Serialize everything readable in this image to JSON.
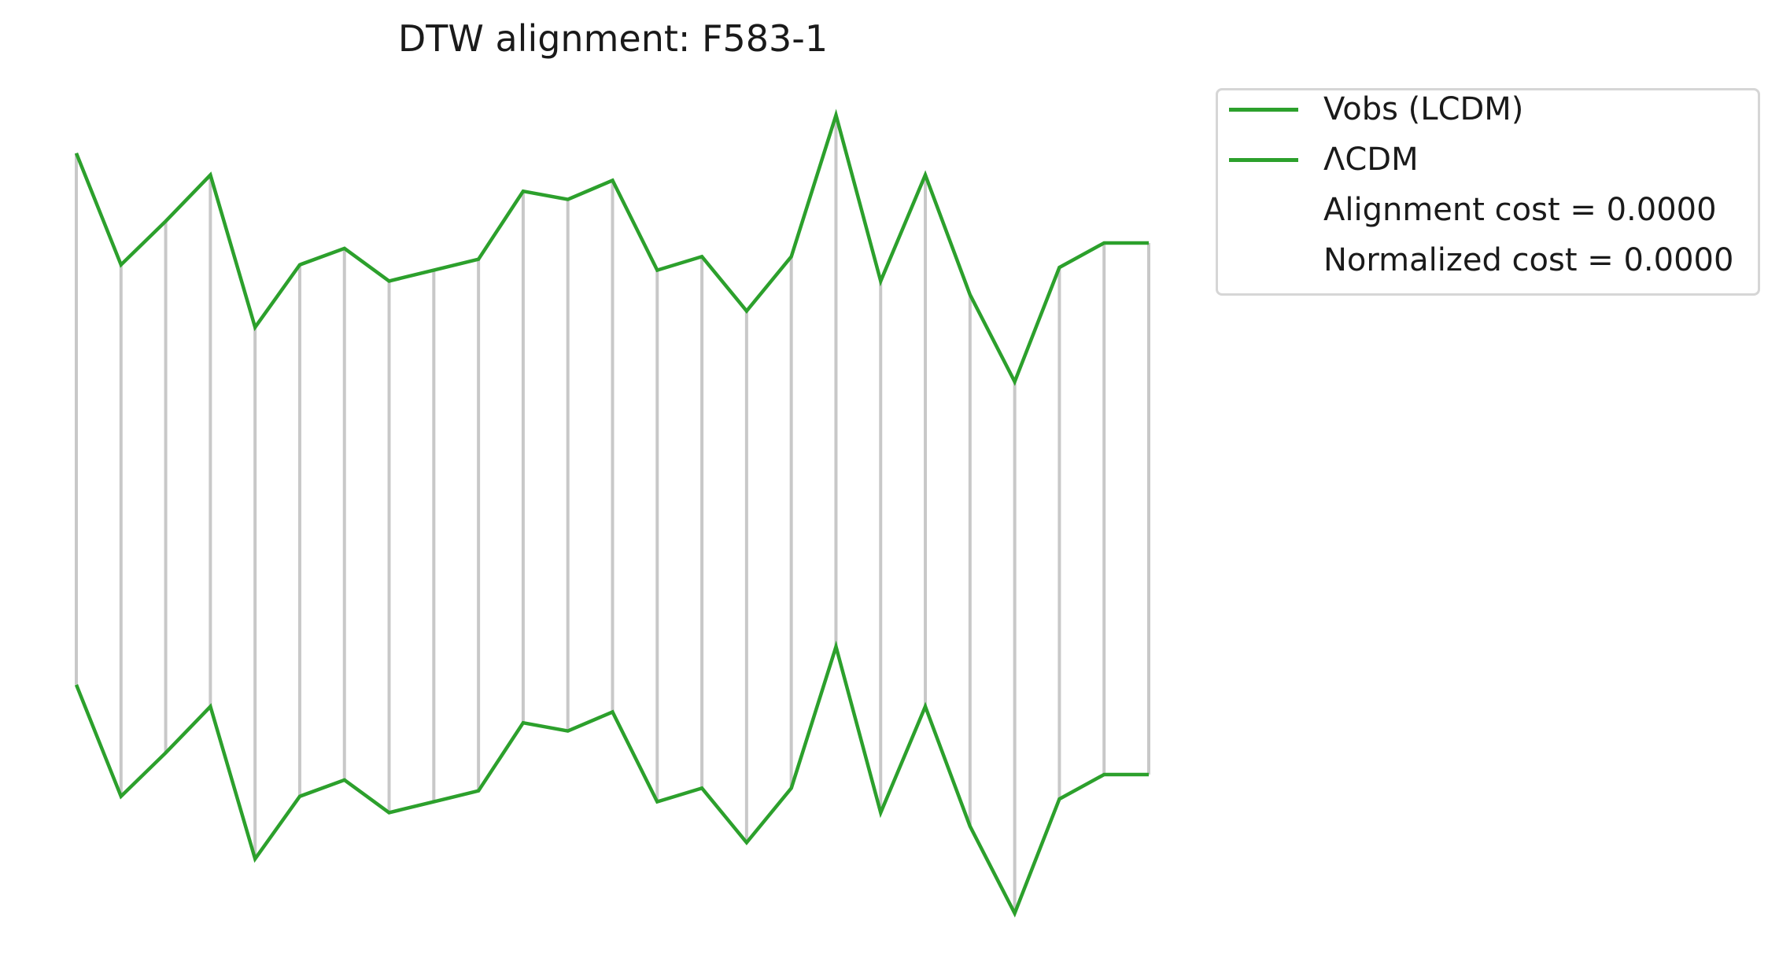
{
  "chart_data": {
    "type": "line",
    "title": "DTW alignment: F583-1",
    "xlabel": "",
    "ylabel": "",
    "axes_visible": false,
    "grid": false,
    "legend_position": "outside-right-top",
    "series": [
      {
        "name": "Vobs (LCDM)",
        "color": "#2ca02c",
        "values": [
          1.2,
          0.79,
          0.95,
          1.12,
          0.56,
          0.79,
          0.85,
          0.73,
          0.77,
          0.81,
          1.06,
          1.03,
          1.1,
          0.77,
          0.82,
          0.62,
          0.82,
          1.34,
          0.73,
          1.12,
          0.68,
          0.36,
          0.78,
          0.87,
          0.87
        ]
      },
      {
        "name": "ΛCDM",
        "color": "#2ca02c",
        "values": [
          1.2,
          0.79,
          0.95,
          1.12,
          0.56,
          0.79,
          0.85,
          0.73,
          0.77,
          0.81,
          1.06,
          1.03,
          1.1,
          0.77,
          0.82,
          0.62,
          0.82,
          1.34,
          0.73,
          1.12,
          0.68,
          0.36,
          0.78,
          0.87,
          0.87
        ]
      }
    ],
    "alignment_lines_color": "#c8c8c8",
    "alignment_pairs": "one-to-one (i to i)"
  },
  "legend": {
    "items": [
      {
        "label": "Vobs (LCDM)",
        "color": "#2ca02c",
        "has_line": true
      },
      {
        "label": "ΛCDM",
        "color": "#2ca02c",
        "has_line": true
      },
      {
        "label": "Alignment cost = 0.0000",
        "has_line": false
      },
      {
        "label": "Normalized cost = 0.0000",
        "has_line": false
      }
    ]
  }
}
